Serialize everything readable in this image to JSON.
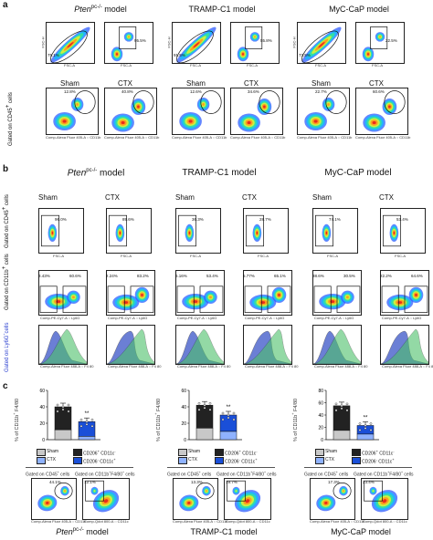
{
  "panel_a": {
    "letter": "a",
    "models": [
      {
        "title_main": "Pten",
        "title_sup": "pc-/-",
        "title_rest": " model",
        "pct_fsc": "75.1%",
        "pct_live": "95.5%",
        "pct_sham": "12.8%",
        "pct_ctx": "40.8%",
        "label_sham": "Sham",
        "label_ctx": "CTX"
      },
      {
        "title_main": "TRAMP-C1 model",
        "title_sup": "",
        "title_rest": "",
        "pct_fsc": "91.5%",
        "pct_live": "55.8%",
        "pct_sham": "12.6%",
        "pct_ctx": "34.6%",
        "label_sham": "Sham",
        "label_ctx": "CTX"
      },
      {
        "title_main": "MyC-CaP model",
        "title_sup": "",
        "title_rest": "",
        "pct_fsc": "73.5%",
        "pct_live": "22.5%",
        "pct_sham": "22.7%",
        "pct_ctx": "60.6%",
        "label_sham": "Sham",
        "label_ctx": "CTX"
      }
    ],
    "side_label": "Gated on CD45",
    "side_sup": "+",
    "side_rest": " cells",
    "axis_fsc_h": "FSC-H",
    "axis_fsc_a": "FSC-A",
    "axis_cd45": "Comp-Qdot 605-A :: CD45",
    "axis_ly6g": "Comp-PE-Cy7-A :: Ly6G",
    "axis_cd11b": "Comp-Alexa Fluor 405-A :: CD11b"
  },
  "panel_b": {
    "letter": "b",
    "models": [
      {
        "title_main": "Pten",
        "title_sup": "pc-/-",
        "title_rest": " model",
        "label_sham": "Sham",
        "label_ctx": "CTX",
        "sham_top": "96.0%",
        "ctx_top": "89.6%",
        "sham_l": "3.43%",
        "sham_r": "60.6%",
        "ctx_l": "2.24%",
        "ctx_r": "83.2%"
      },
      {
        "title_main": "TRAMP-C1 model",
        "title_sup": "",
        "title_rest": "",
        "label_sham": "Sham",
        "label_ctx": "CTX",
        "sham_top": "36.3%",
        "ctx_top": "28.7%",
        "sham_l": "6.16%",
        "sham_r": "53.4%",
        "ctx_l": "5.77%",
        "ctx_r": "65.1%"
      },
      {
        "title_main": "MyC-CaP model",
        "title_sup": "",
        "title_rest": "",
        "label_sham": "Sham",
        "label_ctx": "CTX",
        "sham_top": "74.1%",
        "ctx_top": "53.4%",
        "sham_l": "38.6%",
        "sham_r": "30.5%",
        "ctx_l": "22.2%",
        "ctx_r": "64.6%"
      }
    ],
    "row_labels": [
      {
        "pre": "Gated on CD45",
        "sup": "+",
        "post": " cells"
      },
      {
        "pre": "Gated on CD11b",
        "sup": "+",
        "post": " cells"
      },
      {
        "pre": "Gated on Ly6G",
        "sup": "-",
        "post": "cells"
      }
    ],
    "axis_fsc_a": "FSC-A",
    "axis_cd11b": "Comp-Alexa Fluor 405-A :: CD11b",
    "axis_ly6c": "Comp-Alexa Fluor 700-A :: Ly6C",
    "axis_ly6g": "Comp-PE-Cy7-A :: Ly6G",
    "axis_mode": "Normalized To Mode",
    "axis_f480": "Comp-Alexa Fluor 488-A :: F4 80"
  },
  "panel_c": {
    "letter": "c",
    "ylabel_pre": "% of CD11b",
    "ylabel_sup1": "+",
    "ylabel_mid": " F4/80",
    "ylabel_sup2": "+",
    "ylabel_post": " cells",
    "significance": "**",
    "legend_sham": "Sham",
    "legend_ctx": "CTX",
    "legend_cd206": "CD206",
    "legend_cd206_sup": "+",
    "legend_cd11c": " CD11c",
    "legend_cd11c_sup": "-",
    "legend_cd206_b": "CD206",
    "legend_cd206_b_sup": "-",
    "legend_cd11c_b": " CD11c",
    "legend_cd11c_b_sup": "+",
    "gate_left": "Gated on CD45",
    "gate_left_sup": "+",
    "gate_left_post": " cells",
    "gate_right": "Gated on CD11b",
    "gate_right_sup": "+",
    "gate_right_post": "F4/80",
    "gate_right_sup2": "+",
    "gate_right_post2": " cells",
    "footer_models": [
      {
        "main": "Pten",
        "sup": "pc-/-",
        "rest": " model"
      },
      {
        "main": "TRAMP-C1 model",
        "sup": "",
        "rest": ""
      },
      {
        "main": "MyC-CaP model",
        "sup": "",
        "rest": ""
      }
    ],
    "axis_f480": "Comp-Alexa Fluor 488-A :: F4 80",
    "axis_cd206": "Comp-APC-A :: CD206",
    "axis_cd11c": "Comp-Qdot 800-A :: CD11c",
    "axis_cd11b": "Comp-Alexa Fluor 405-A :: CD11b",
    "pct_gate": [
      "44.1%",
      "13.3%",
      "17.3%"
    ],
    "pct_quad": [
      "12.1%",
      "19.7%",
      "23.4%"
    ]
  },
  "chart_data": [
    {
      "type": "bar",
      "title": "Pten pc-/- model",
      "ylabel": "% of CD11b+ F4/80+ cells",
      "ylim": [
        0,
        60
      ],
      "yticks": [
        0,
        20,
        40,
        60
      ],
      "categories": [
        "Sham",
        "CTX"
      ],
      "series": [
        {
          "name": "CD206+ CD11c-",
          "values": [
            28,
            18
          ]
        },
        {
          "name": "CD206- CD11c+",
          "values": [
            12,
            4
          ]
        }
      ],
      "totals": [
        40,
        22
      ],
      "significance": "**",
      "color_accent": "#1a4fd8"
    },
    {
      "type": "bar",
      "title": "TRAMP-C1 model",
      "ylabel": "% of CD11b+ F4/80+ cells",
      "ylim": [
        0,
        60
      ],
      "yticks": [
        0,
        20,
        40,
        60
      ],
      "categories": [
        "Sham",
        "CTX"
      ],
      "series": [
        {
          "name": "CD206+ CD11c-",
          "values": [
            28,
            20
          ]
        },
        {
          "name": "CD206- CD11c+",
          "values": [
            14,
            10
          ]
        }
      ],
      "totals": [
        42,
        30
      ],
      "significance": "**",
      "color_accent": "#1a4fd8"
    },
    {
      "type": "bar",
      "title": "MyC-CaP model",
      "ylabel": "% of CD11b+ F4/80+ cells",
      "ylim": [
        0,
        80
      ],
      "yticks": [
        0,
        20,
        40,
        60,
        80
      ],
      "categories": [
        "Sham",
        "CTX"
      ],
      "series": [
        {
          "name": "CD206+ CD11c-",
          "values": [
            40,
            14
          ]
        },
        {
          "name": "CD206- CD11c+",
          "values": [
            15,
            9
          ]
        }
      ],
      "totals": [
        55,
        23
      ],
      "significance": "**",
      "color_accent": "#1a4fd8"
    }
  ]
}
